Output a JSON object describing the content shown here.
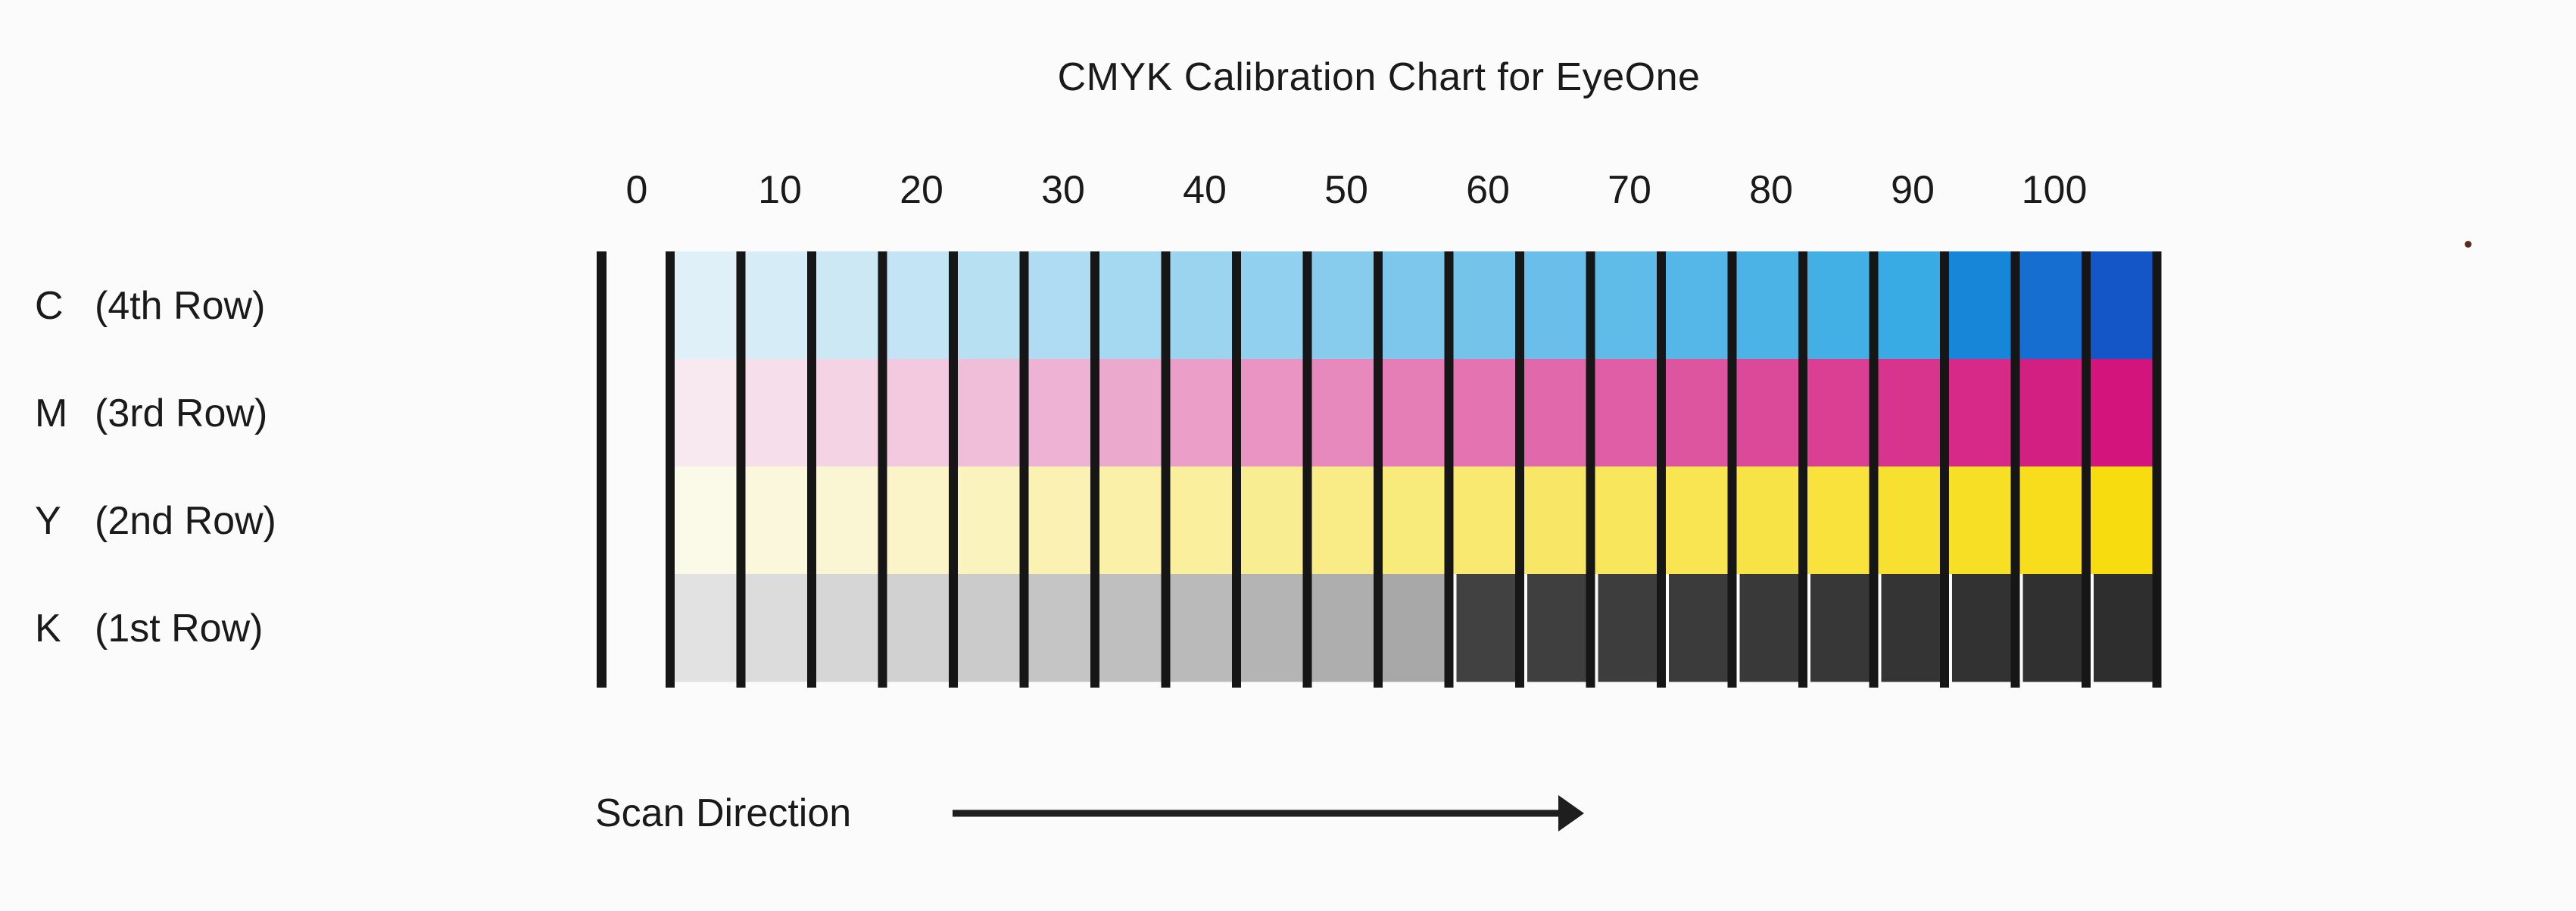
{
  "title": "CMYK Calibration Chart for EyeOne",
  "scan_direction_label": "Scan Direction",
  "chart_data": {
    "type": "heatmap",
    "title": "CMYK Calibration Chart for EyeOne",
    "x_tick_labels": [
      "0",
      "10",
      "20",
      "30",
      "40",
      "50",
      "60",
      "70",
      "80",
      "90",
      "100"
    ],
    "percent_steps": [
      0,
      5,
      10,
      15,
      20,
      25,
      30,
      35,
      40,
      45,
      50,
      55,
      60,
      65,
      70,
      75,
      80,
      85,
      90,
      95,
      100
    ],
    "rows": [
      {
        "label_letter": "C",
        "label_row": "(4th Row)",
        "ink": "cyan"
      },
      {
        "label_letter": "M",
        "label_row": "(3rd Row)",
        "ink": "magenta"
      },
      {
        "label_letter": "Y",
        "label_row": "(2nd Row)",
        "ink": "yellow"
      },
      {
        "label_letter": "K",
        "label_row": "(1st Row)",
        "ink": "black"
      }
    ],
    "ink_colors": {
      "cyan": "#1a9fe0",
      "magenta": "#d2147c",
      "yellow": "#f7dc10",
      "black": "#2a2a2a",
      "paper": "#fbfbfb",
      "divider": "#161616"
    },
    "grid": false
  }
}
